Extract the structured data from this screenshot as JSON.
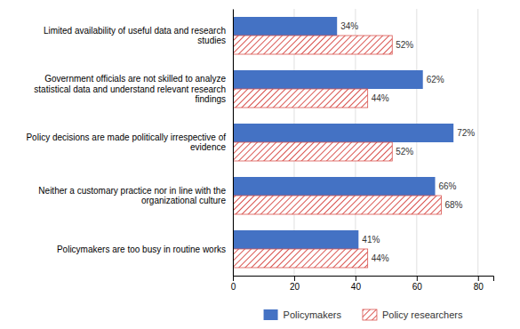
{
  "chart_data": {
    "type": "bar",
    "orientation": "horizontal",
    "categories": [
      "Limited availability of useful data and research\nstudies",
      "Government officials are not skilled to analyze\nstatistical data and understand relevant research\nfindings",
      "Policy decisions are made politically irrespective of\nevidence",
      "Neither a customary practice nor in line with the\norganizational culture",
      "Policymakers are too busy in routine works"
    ],
    "series": [
      {
        "name": "Policymakers",
        "color": "#4472C4",
        "values": [
          34,
          62,
          72,
          66,
          41
        ],
        "value_labels": [
          "34%",
          "62%",
          "72%",
          "66%",
          "41%"
        ]
      },
      {
        "name": "Policy researchers",
        "color": "#d9534f",
        "values": [
          52,
          44,
          52,
          68,
          44
        ],
        "value_labels": [
          "52%",
          "44%",
          "52%",
          "68%",
          "44%"
        ]
      }
    ],
    "xlim": [
      0,
      85
    ],
    "xticks": [
      0,
      20,
      40,
      60,
      80
    ],
    "grid": true,
    "data_labels": true,
    "legend": "bottom"
  }
}
